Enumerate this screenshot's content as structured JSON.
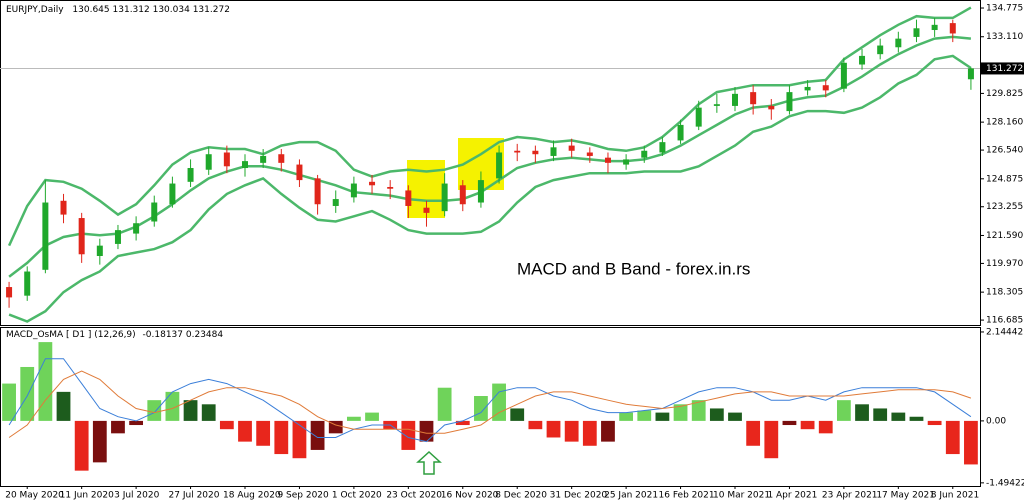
{
  "chart_data": [
    {
      "type": "candlestick",
      "symbol": "EURJPY,Daily",
      "annotation": "MACD and B Band - forex.in.rs",
      "up_color": "#1fa82b",
      "down_color": "#e0261b",
      "open": [
        118.6,
        118.1,
        119.6,
        123.6,
        122.6,
        120.4,
        121.1,
        121.7,
        122.4,
        123.4,
        124.7,
        125.4,
        126.4,
        125.5,
        125.8,
        126.3,
        125.7,
        124.9,
        123.3,
        123.8,
        124.7,
        124.4,
        124.2,
        123.2,
        123.0,
        124.5,
        123.5,
        124.9,
        126.5,
        126.5,
        126.2,
        126.8,
        126.4,
        126.1,
        125.7,
        126.1,
        126.4,
        127.1,
        127.9,
        129.1,
        129.1,
        129.9,
        129.1,
        128.8,
        130.0,
        130.3,
        130.1,
        131.5,
        132.1,
        132.5,
        133.1,
        133.5,
        133.9,
        130.645
      ],
      "high": [
        118.9,
        119.8,
        124.8,
        124.0,
        122.9,
        121.4,
        122.2,
        122.7,
        123.9,
        125.0,
        126.0,
        126.7,
        126.8,
        126.3,
        126.6,
        126.6,
        126.0,
        125.1,
        124.2,
        125.0,
        125.1,
        124.8,
        124.5,
        123.6,
        125.2,
        124.8,
        125.3,
        126.8,
        126.9,
        126.8,
        127.1,
        127.2,
        126.7,
        126.4,
        126.3,
        126.8,
        127.3,
        128.3,
        129.4,
        129.8,
        130.2,
        130.3,
        129.5,
        130.3,
        130.6,
        130.6,
        131.9,
        132.4,
        133.0,
        133.4,
        134.1,
        134.2,
        134.1,
        131.312
      ],
      "low": [
        117.4,
        117.8,
        119.4,
        122.3,
        120.0,
        119.9,
        120.8,
        121.3,
        122.1,
        123.2,
        124.4,
        125.1,
        125.2,
        125.0,
        125.5,
        125.3,
        124.4,
        122.8,
        122.9,
        123.5,
        124.0,
        123.7,
        122.6,
        122.1,
        122.7,
        123.0,
        123.2,
        124.6,
        125.9,
        125.8,
        125.9,
        126.1,
        125.8,
        125.2,
        125.4,
        125.8,
        126.2,
        126.9,
        127.7,
        128.7,
        128.8,
        128.6,
        128.3,
        128.6,
        129.7,
        129.6,
        129.9,
        131.2,
        131.8,
        132.2,
        132.8,
        133.1,
        132.8,
        130.034
      ],
      "close": [
        118.0,
        119.5,
        123.5,
        122.8,
        120.5,
        121.0,
        121.9,
        122.3,
        123.5,
        124.6,
        125.5,
        126.3,
        125.6,
        125.9,
        126.2,
        125.8,
        124.8,
        123.4,
        123.7,
        124.6,
        124.5,
        124.3,
        123.3,
        122.9,
        124.6,
        123.4,
        124.8,
        126.4,
        126.4,
        126.3,
        126.7,
        126.5,
        126.2,
        125.8,
        126.0,
        126.5,
        127.0,
        128.0,
        129.0,
        129.2,
        129.8,
        129.2,
        128.9,
        129.9,
        130.2,
        130.0,
        131.6,
        132.0,
        132.6,
        133.0,
        133.6,
        133.8,
        133.3,
        131.272
      ],
      "bands": {
        "color": "#4cb86a",
        "upper": [
          121.0,
          123.3,
          124.8,
          124.7,
          124.3,
          123.6,
          122.8,
          123.4,
          124.5,
          125.7,
          126.4,
          126.7,
          126.6,
          126.6,
          126.3,
          126.8,
          127.0,
          127.0,
          126.5,
          125.4,
          125.0,
          125.3,
          125.4,
          125.3,
          125.4,
          125.7,
          126.3,
          127.0,
          127.3,
          127.2,
          127.0,
          127.1,
          126.9,
          126.6,
          126.5,
          126.7,
          127.3,
          128.2,
          129.2,
          129.9,
          130.1,
          130.3,
          130.3,
          130.3,
          130.5,
          130.6,
          131.8,
          132.5,
          133.2,
          133.8,
          134.3,
          134.2,
          134.2,
          134.8
        ],
        "middle": [
          119.2,
          120.0,
          121.0,
          121.5,
          121.7,
          121.6,
          121.7,
          122.1,
          122.7,
          123.4,
          124.2,
          124.9,
          125.3,
          125.6,
          125.6,
          125.4,
          125.1,
          124.8,
          124.5,
          124.1,
          124.0,
          123.9,
          123.7,
          123.6,
          123.6,
          123.7,
          124.1,
          124.8,
          125.5,
          125.8,
          126.0,
          126.1,
          126.0,
          125.9,
          125.9,
          126.0,
          126.3,
          126.8,
          127.4,
          128.0,
          128.6,
          129.0,
          129.1,
          129.4,
          129.6,
          129.7,
          130.2,
          130.8,
          131.5,
          132.1,
          132.6,
          133.0,
          133.1,
          133.0
        ],
        "lower": [
          117.0,
          116.6,
          117.2,
          118.3,
          119.0,
          119.5,
          120.4,
          120.6,
          120.8,
          121.2,
          121.9,
          123.1,
          124.0,
          124.5,
          124.9,
          124.0,
          123.2,
          122.5,
          122.4,
          122.7,
          123.0,
          122.5,
          121.9,
          121.7,
          121.7,
          121.7,
          121.8,
          122.4,
          123.5,
          124.4,
          124.8,
          125.0,
          125.2,
          125.2,
          125.2,
          125.3,
          125.3,
          125.3,
          125.6,
          126.2,
          126.8,
          127.6,
          127.9,
          128.5,
          128.8,
          128.8,
          128.7,
          129.0,
          129.6,
          130.4,
          130.9,
          131.8,
          132.0,
          131.3
        ]
      },
      "ylim": [
        116.4,
        135.24
      ],
      "yticks": [
        116.685,
        118.305,
        {
          "value": 119.97,
          "label": "119.970"
        },
        {
          "value": 121.59,
          "label": "121.590"
        },
        123.255,
        124.875,
        {
          "value": 126.54,
          "label": "126.540"
        },
        {
          "value": 128.16,
          "label": "128.160"
        },
        129.825,
        {
          "value": 133.11,
          "label": "133.110"
        },
        134.775
      ]
    },
    {
      "type": "macd",
      "title": "MACD_OsMA [ D1 ] (12,26,9)",
      "indicator_values": [
        -0.18137,
        0.23484
      ],
      "histogram_colors": {
        "positive_rising": "#6fd35a",
        "positive_falling": "#1d5c1d",
        "negative_falling": "#e8261c",
        "negative_rising": "#7a0f0f"
      },
      "histogram": [
        0.9,
        1.3,
        1.9,
        0.7,
        -1.2,
        -1.0,
        -0.3,
        -0.1,
        0.5,
        0.7,
        0.5,
        0.4,
        -0.2,
        -0.5,
        -0.6,
        -0.8,
        -0.9,
        -0.7,
        -0.3,
        0.1,
        0.2,
        -0.2,
        -0.7,
        -0.5,
        0.8,
        -0.1,
        0.6,
        0.9,
        0.3,
        -0.2,
        -0.4,
        -0.5,
        -0.6,
        -0.5,
        0.2,
        0.25,
        0.2,
        0.4,
        0.5,
        0.3,
        0.2,
        -0.6,
        -0.9,
        -0.1,
        -0.2,
        -0.3,
        0.5,
        0.4,
        0.3,
        0.2,
        0.1,
        -0.1,
        -0.8,
        -1.05
      ],
      "main": {
        "color": "#3b7fd9",
        "values": [
          -0.1,
          0.6,
          1.5,
          1.5,
          0.9,
          0.3,
          0.1,
          0.0,
          0.2,
          0.7,
          0.9,
          1.0,
          0.9,
          0.7,
          0.5,
          0.2,
          -0.1,
          -0.4,
          -0.4,
          -0.2,
          -0.1,
          -0.1,
          -0.4,
          -0.5,
          -0.1,
          0.0,
          0.2,
          0.7,
          0.8,
          0.8,
          0.6,
          0.5,
          0.3,
          0.2,
          0.2,
          0.25,
          0.3,
          0.5,
          0.7,
          0.8,
          0.8,
          0.7,
          0.5,
          0.5,
          0.6,
          0.5,
          0.7,
          0.8,
          0.8,
          0.8,
          0.8,
          0.7,
          0.4,
          0.1
        ]
      },
      "signal": {
        "color": "#e07b39",
        "values": [
          -0.4,
          -0.1,
          0.5,
          1.0,
          1.2,
          1.0,
          0.6,
          0.3,
          0.2,
          0.3,
          0.5,
          0.7,
          0.8,
          0.8,
          0.7,
          0.6,
          0.4,
          0.1,
          -0.1,
          -0.2,
          -0.2,
          -0.2,
          -0.2,
          -0.3,
          -0.3,
          -0.2,
          -0.1,
          0.2,
          0.4,
          0.6,
          0.7,
          0.7,
          0.6,
          0.5,
          0.4,
          0.35,
          0.3,
          0.35,
          0.45,
          0.55,
          0.65,
          0.7,
          0.7,
          0.6,
          0.6,
          0.6,
          0.6,
          0.65,
          0.7,
          0.75,
          0.75,
          0.75,
          0.7,
          0.55
        ]
      },
      "categories": [
        null,
        "20 May 2020",
        null,
        null,
        "11 Jun 2020",
        null,
        null,
        "3 Jul 2020",
        null,
        null,
        "27 Jul 2020",
        null,
        null,
        "18 Aug 2020",
        null,
        null,
        "9 Sep 2020",
        null,
        null,
        "1 Oct 2020",
        null,
        null,
        "23 Oct 2020",
        null,
        null,
        "16 Nov 2020",
        null,
        null,
        "8 Dec 2020",
        null,
        null,
        "31 Dec 2020",
        null,
        null,
        "25 Jan 2021",
        null,
        null,
        "16 Feb 2021",
        null,
        null,
        "10 Mar 2021",
        null,
        null,
        "1 Apr 2021",
        null,
        null,
        "23 Apr 2021",
        null,
        null,
        "17 May 2021",
        null,
        null,
        "8 Jun 2021",
        null
      ],
      "ylim": [
        -1.57,
        2.24
      ],
      "yticks": [
        2.14442,
        {
          "value": 0,
          "label": "0.00"
        },
        -1.49422
      ]
    }
  ]
}
